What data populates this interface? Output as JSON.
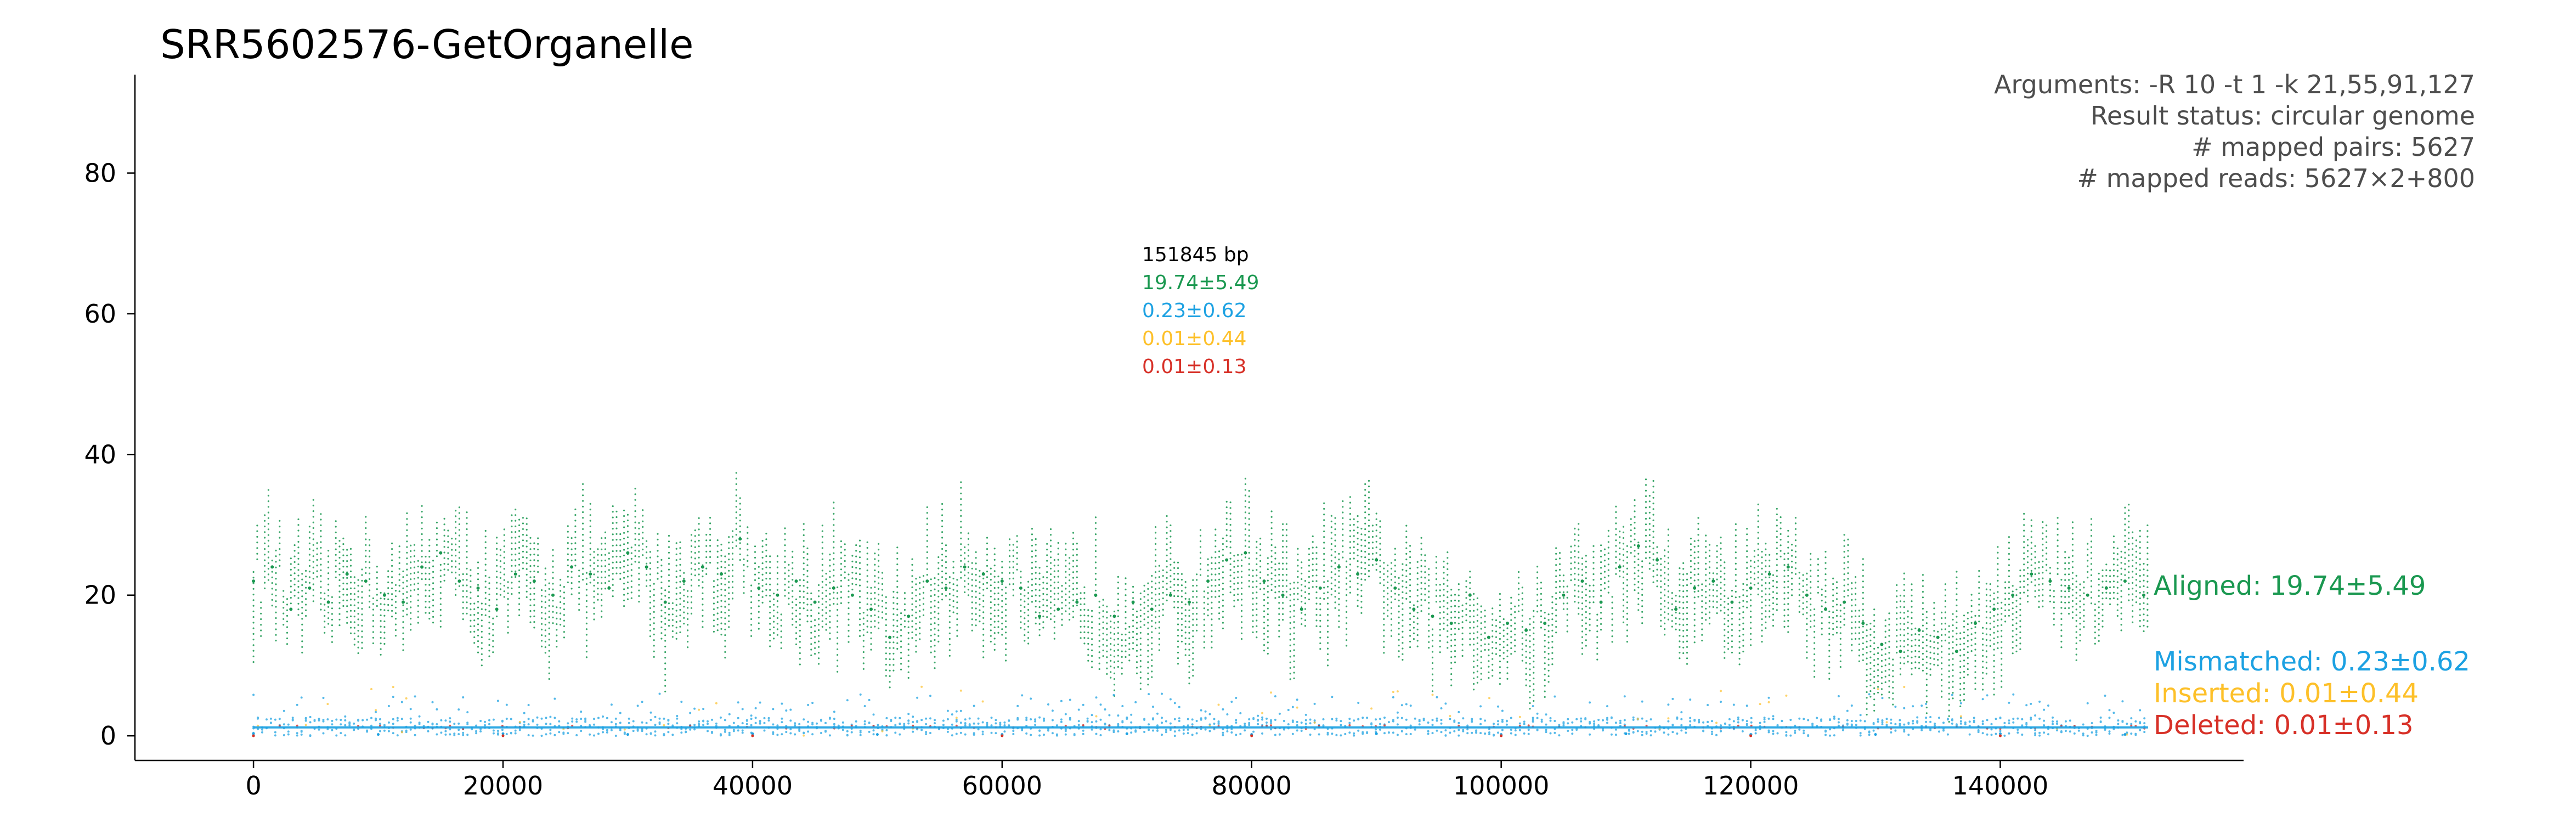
{
  "chart_data": {
    "type": "scatter",
    "title": "SRR5602576-GetOrganelle",
    "info_lines": [
      "Arguments: -R 10 -t 1 -k 21,55,91,127",
      "Result status: circular genome",
      "# mapped pairs: 5627",
      "# mapped reads: 5627×2+800"
    ],
    "annotation": {
      "length": "151845 bp",
      "aligned": "19.74±5.49",
      "mismatched": "0.23±0.62",
      "inserted": "0.01±0.44",
      "deleted": "0.01±0.13"
    },
    "xlim": [
      -9500,
      159500
    ],
    "ylim": [
      -3.5,
      94
    ],
    "xticks": [
      0,
      20000,
      40000,
      60000,
      80000,
      100000,
      120000,
      140000
    ],
    "xtick_labels": [
      "0",
      "20000",
      "40000",
      "60000",
      "80000",
      "100000",
      "120000",
      "140000"
    ],
    "yticks": [
      0,
      20,
      40,
      60,
      80
    ],
    "ytick_labels": [
      "0",
      "20",
      "40",
      "60",
      "80"
    ],
    "genome_length": 151845,
    "grid": false,
    "series": [
      {
        "name": "Aligned: 19.74±5.49",
        "color": "#1a9850",
        "x": [
          0,
          1500,
          3000,
          4500,
          6000,
          7500,
          9000,
          10500,
          12000,
          13500,
          15000,
          16500,
          18000,
          19500,
          21000,
          22500,
          24000,
          25500,
          27000,
          28500,
          30000,
          31500,
          33000,
          34500,
          36000,
          37500,
          39000,
          40500,
          42000,
          43500,
          45000,
          46500,
          48000,
          49500,
          51000,
          52500,
          54000,
          55500,
          57000,
          58500,
          60000,
          61500,
          63000,
          64500,
          66000,
          67500,
          69000,
          70500,
          72000,
          73500,
          75000,
          76500,
          78000,
          79500,
          81000,
          82500,
          84000,
          85500,
          87000,
          88500,
          90000,
          91500,
          93000,
          94500,
          96000,
          97500,
          99000,
          100500,
          102000,
          103500,
          105000,
          106500,
          108000,
          109500,
          111000,
          112500,
          114000,
          115500,
          117000,
          118500,
          120000,
          121500,
          123000,
          124500,
          126000,
          127500,
          129000,
          130500,
          132000,
          133500,
          135000,
          136500,
          138000,
          139500,
          141000,
          142500,
          144000,
          145500,
          147000,
          148500,
          150000,
          151500
        ],
        "y": [
          22,
          24,
          18,
          21,
          19,
          23,
          22,
          20,
          19,
          24,
          26,
          22,
          21,
          18,
          23,
          22,
          20,
          24,
          23,
          21,
          26,
          24,
          19,
          22,
          24,
          23,
          28,
          21,
          20,
          22,
          19,
          21,
          20,
          18,
          14,
          17,
          22,
          21,
          24,
          23,
          22,
          21,
          17,
          18,
          19,
          20,
          17,
          19,
          18,
          20,
          19,
          22,
          25,
          26,
          22,
          20,
          18,
          21,
          24,
          23,
          25,
          21,
          18,
          17,
          16,
          20,
          14,
          16,
          15,
          16,
          20,
          22,
          19,
          24,
          27,
          25,
          18,
          21,
          22,
          19,
          21,
          23,
          24,
          20,
          18,
          19,
          16,
          13,
          12,
          15,
          14,
          12,
          16,
          18,
          20,
          23,
          22,
          21,
          20,
          21,
          22,
          20
        ]
      },
      {
        "name": "Mismatched: 0.23±0.62",
        "color": "#1ca1e2",
        "x": [
          0,
          10000,
          20000,
          30000,
          40000,
          50000,
          60000,
          70000,
          80000,
          90000,
          100000,
          110000,
          120000,
          130000,
          140000,
          150000
        ],
        "y": [
          0.3,
          0.2,
          0.3,
          0.2,
          0.3,
          0.2,
          0.2,
          0.3,
          0.2,
          0.3,
          0.2,
          0.3,
          0.2,
          0.2,
          0.3,
          0.2
        ]
      },
      {
        "name": "Inserted: 0.01±0.44",
        "color": "#fdc029",
        "x": [
          0,
          20000,
          40000,
          60000,
          80000,
          100000,
          120000,
          140000
        ],
        "y": [
          0.01,
          0.01,
          0.01,
          0.01,
          0.01,
          0.01,
          0.01,
          0.01
        ]
      },
      {
        "name": "Deleted: 0.01±0.13",
        "color": "#d73027",
        "x": [
          0,
          20000,
          40000,
          60000,
          80000,
          100000,
          120000,
          140000
        ],
        "y": [
          0.01,
          0.01,
          0.01,
          0.01,
          0.01,
          0.01,
          0.01,
          0.01
        ]
      }
    ]
  }
}
